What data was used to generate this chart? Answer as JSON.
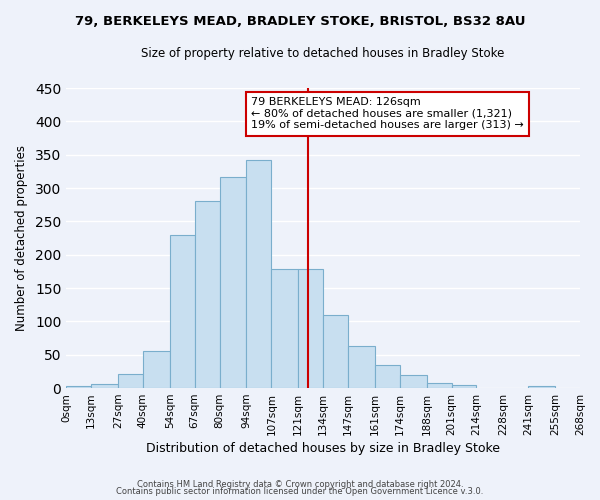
{
  "title": "79, BERKELEYS MEAD, BRADLEY STOKE, BRISTOL, BS32 8AU",
  "subtitle": "Size of property relative to detached houses in Bradley Stoke",
  "xlabel": "Distribution of detached houses by size in Bradley Stoke",
  "ylabel": "Number of detached properties",
  "footnote1": "Contains HM Land Registry data © Crown copyright and database right 2024.",
  "footnote2": "Contains public sector information licensed under the Open Government Licence v.3.0.",
  "bin_labels": [
    "0sqm",
    "13sqm",
    "27sqm",
    "40sqm",
    "54sqm",
    "67sqm",
    "80sqm",
    "94sqm",
    "107sqm",
    "121sqm",
    "134sqm",
    "147sqm",
    "161sqm",
    "174sqm",
    "188sqm",
    "201sqm",
    "214sqm",
    "228sqm",
    "241sqm",
    "255sqm",
    "268sqm"
  ],
  "bin_edges": [
    0,
    13,
    27,
    40,
    54,
    67,
    80,
    94,
    107,
    121,
    134,
    147,
    161,
    174,
    188,
    201,
    214,
    228,
    241,
    255,
    268
  ],
  "bar_heights": [
    3,
    6,
    21,
    55,
    230,
    280,
    317,
    342,
    178,
    178,
    110,
    63,
    34,
    19,
    8,
    5,
    0,
    0,
    3,
    0,
    0
  ],
  "bar_color": "#c8dff0",
  "bar_edge_color": "#7aaecc",
  "property_value": 126,
  "vline_x": 126,
  "vline_color": "#cc0000",
  "annotation_title": "79 BERKELEYS MEAD: 126sqm",
  "annotation_line1": "← 80% of detached houses are smaller (1,321)",
  "annotation_line2": "19% of semi-detached houses are larger (313) →",
  "ylim": [
    0,
    450
  ],
  "background_color": "#eef2fa",
  "grid_color": "#ffffff",
  "yticks": [
    0,
    50,
    100,
    150,
    200,
    250,
    300,
    350,
    400,
    450
  ]
}
